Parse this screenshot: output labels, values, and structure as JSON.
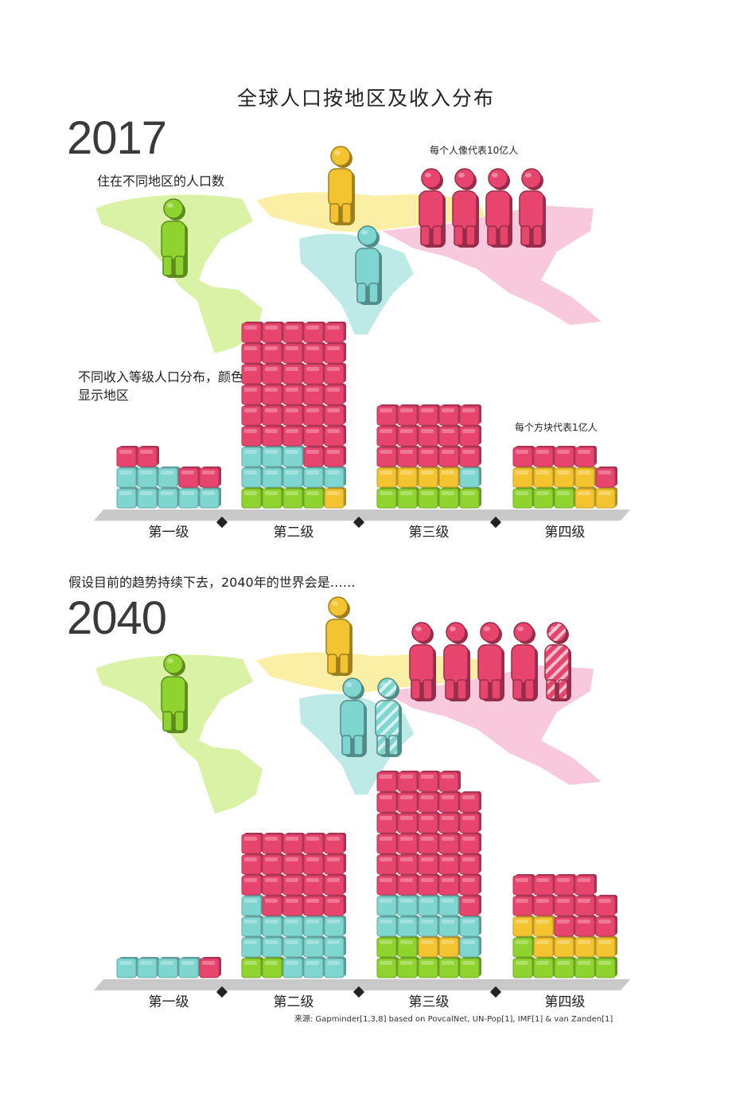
{
  "title": "全球人口按地区及收入分布",
  "scenario_text": "假设目前的趋势持续下去，2040年的世界会是……",
  "source": "来源: Gapminder[1,3,8] based on PovcalNet, UN-Pop[1], IMF[1] & van Zanden[1]",
  "colors": {
    "americas": "#8fd42e",
    "europe": "#f3c430",
    "africa": "#7fd6d1",
    "asia": "#e8456e",
    "map_americas": "#d9f2a6",
    "map_europe": "#fbefa6",
    "map_africa": "#bde9e6",
    "map_asia": "#f8c8dc",
    "base": "#c9c9c9"
  },
  "panels": [
    {
      "year": "2017",
      "map_label": "住在不同地区的人口数",
      "figure_note": "每个人像代表10亿人",
      "income_label": "不同收入等级人口分布，颜色显示地区",
      "block_note": "每个方块代表1亿人"
    },
    {
      "year": "2040"
    }
  ],
  "chart_data": [
    {
      "type": "bar",
      "title": "2017",
      "unit": "1 block = 100 million people; 1 figure = 1 billion people",
      "categories": [
        "第一级",
        "第二级",
        "第三级",
        "第四级"
      ],
      "series": [
        {
          "name": "americas",
          "values": [
            0,
            4,
            5,
            3
          ]
        },
        {
          "name": "europe",
          "values": [
            0,
            1,
            4,
            6
          ]
        },
        {
          "name": "africa",
          "values": [
            8,
            8,
            1,
            0
          ]
        },
        {
          "name": "asia",
          "values": [
            4,
            32,
            15,
            5
          ]
        }
      ],
      "region_figures": {
        "americas": 1,
        "europe": 1,
        "africa": 1,
        "asia": 4
      }
    },
    {
      "type": "bar",
      "title": "2040",
      "unit": "1 block = 100 million people; 1 figure = 1 billion people",
      "categories": [
        "第一级",
        "第二级",
        "第三级",
        "第四级"
      ],
      "series": [
        {
          "name": "americas",
          "values": [
            0,
            2,
            7,
            6
          ]
        },
        {
          "name": "europe",
          "values": [
            0,
            0,
            2,
            6
          ]
        },
        {
          "name": "africa",
          "values": [
            4,
            14,
            10,
            0
          ]
        },
        {
          "name": "asia",
          "values": [
            1,
            19,
            30,
            12
          ]
        }
      ],
      "region_figures": {
        "americas": 1,
        "europe": 1,
        "africa": 2,
        "asia": 5
      }
    }
  ]
}
